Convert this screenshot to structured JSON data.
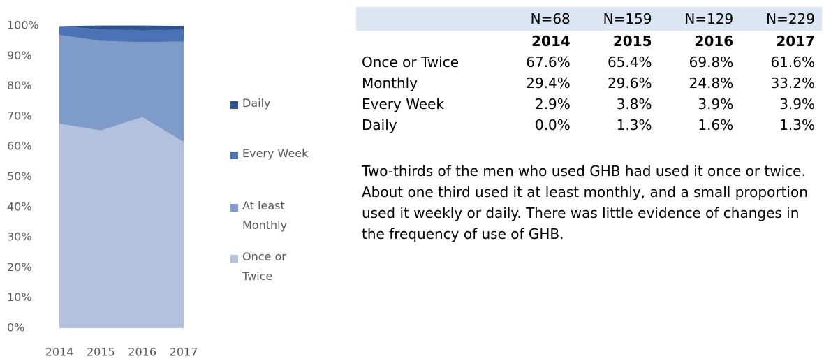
{
  "chart_data": {
    "type": "area",
    "categories": [
      "2014",
      "2015",
      "2016",
      "2017"
    ],
    "series": [
      {
        "name": "Once or Twice",
        "color": "#b4c1de",
        "values": [
          67.6,
          65.4,
          69.8,
          61.6
        ]
      },
      {
        "name": "At least Monthly",
        "color": "#7f9bc9",
        "values": [
          29.4,
          29.6,
          24.8,
          33.2
        ]
      },
      {
        "name": "Every Week",
        "color": "#4a72b5",
        "values": [
          2.9,
          3.8,
          3.9,
          3.9
        ]
      },
      {
        "name": "Daily",
        "color": "#2e5490",
        "values": [
          0.0,
          1.3,
          1.6,
          1.3
        ]
      }
    ],
    "stacked": true,
    "ylim": [
      0,
      100
    ],
    "yticks": [
      {
        "value": 0,
        "label": "0%"
      },
      {
        "value": 10,
        "label": "10%"
      },
      {
        "value": 20,
        "label": "20%"
      },
      {
        "value": 30,
        "label": "30%"
      },
      {
        "value": 40,
        "label": "40%"
      },
      {
        "value": 50,
        "label": "50%"
      },
      {
        "value": 60,
        "label": "60%"
      },
      {
        "value": 70,
        "label": "70%"
      },
      {
        "value": 80,
        "label": "80%"
      },
      {
        "value": 90,
        "label": "90%"
      },
      {
        "value": 100,
        "label": "100%"
      }
    ],
    "legend": "right"
  },
  "table": {
    "n_row": [
      "N=68",
      "N=159",
      "N=129",
      "N=229"
    ],
    "years": [
      "2014",
      "2015",
      "2016",
      "2017"
    ],
    "rows": [
      {
        "label": "Once or Twice",
        "values": [
          "67.6%",
          "65.4%",
          "69.8%",
          "61.6%"
        ]
      },
      {
        "label": "Monthly",
        "values": [
          "29.4%",
          "29.6%",
          "24.8%",
          "33.2%"
        ]
      },
      {
        "label": "Every Week",
        "values": [
          "2.9%",
          "3.8%",
          "3.9%",
          "3.9%"
        ]
      },
      {
        "label": "Daily",
        "values": [
          "0.0%",
          "1.3%",
          "1.6%",
          "1.3%"
        ]
      }
    ]
  },
  "paragraph": "Two-thirds of the men who used GHB had used it once or twice. About one third used it at least monthly, and a small proportion used it weekly or daily. There was little evidence of changes in the frequency of use of GHB."
}
